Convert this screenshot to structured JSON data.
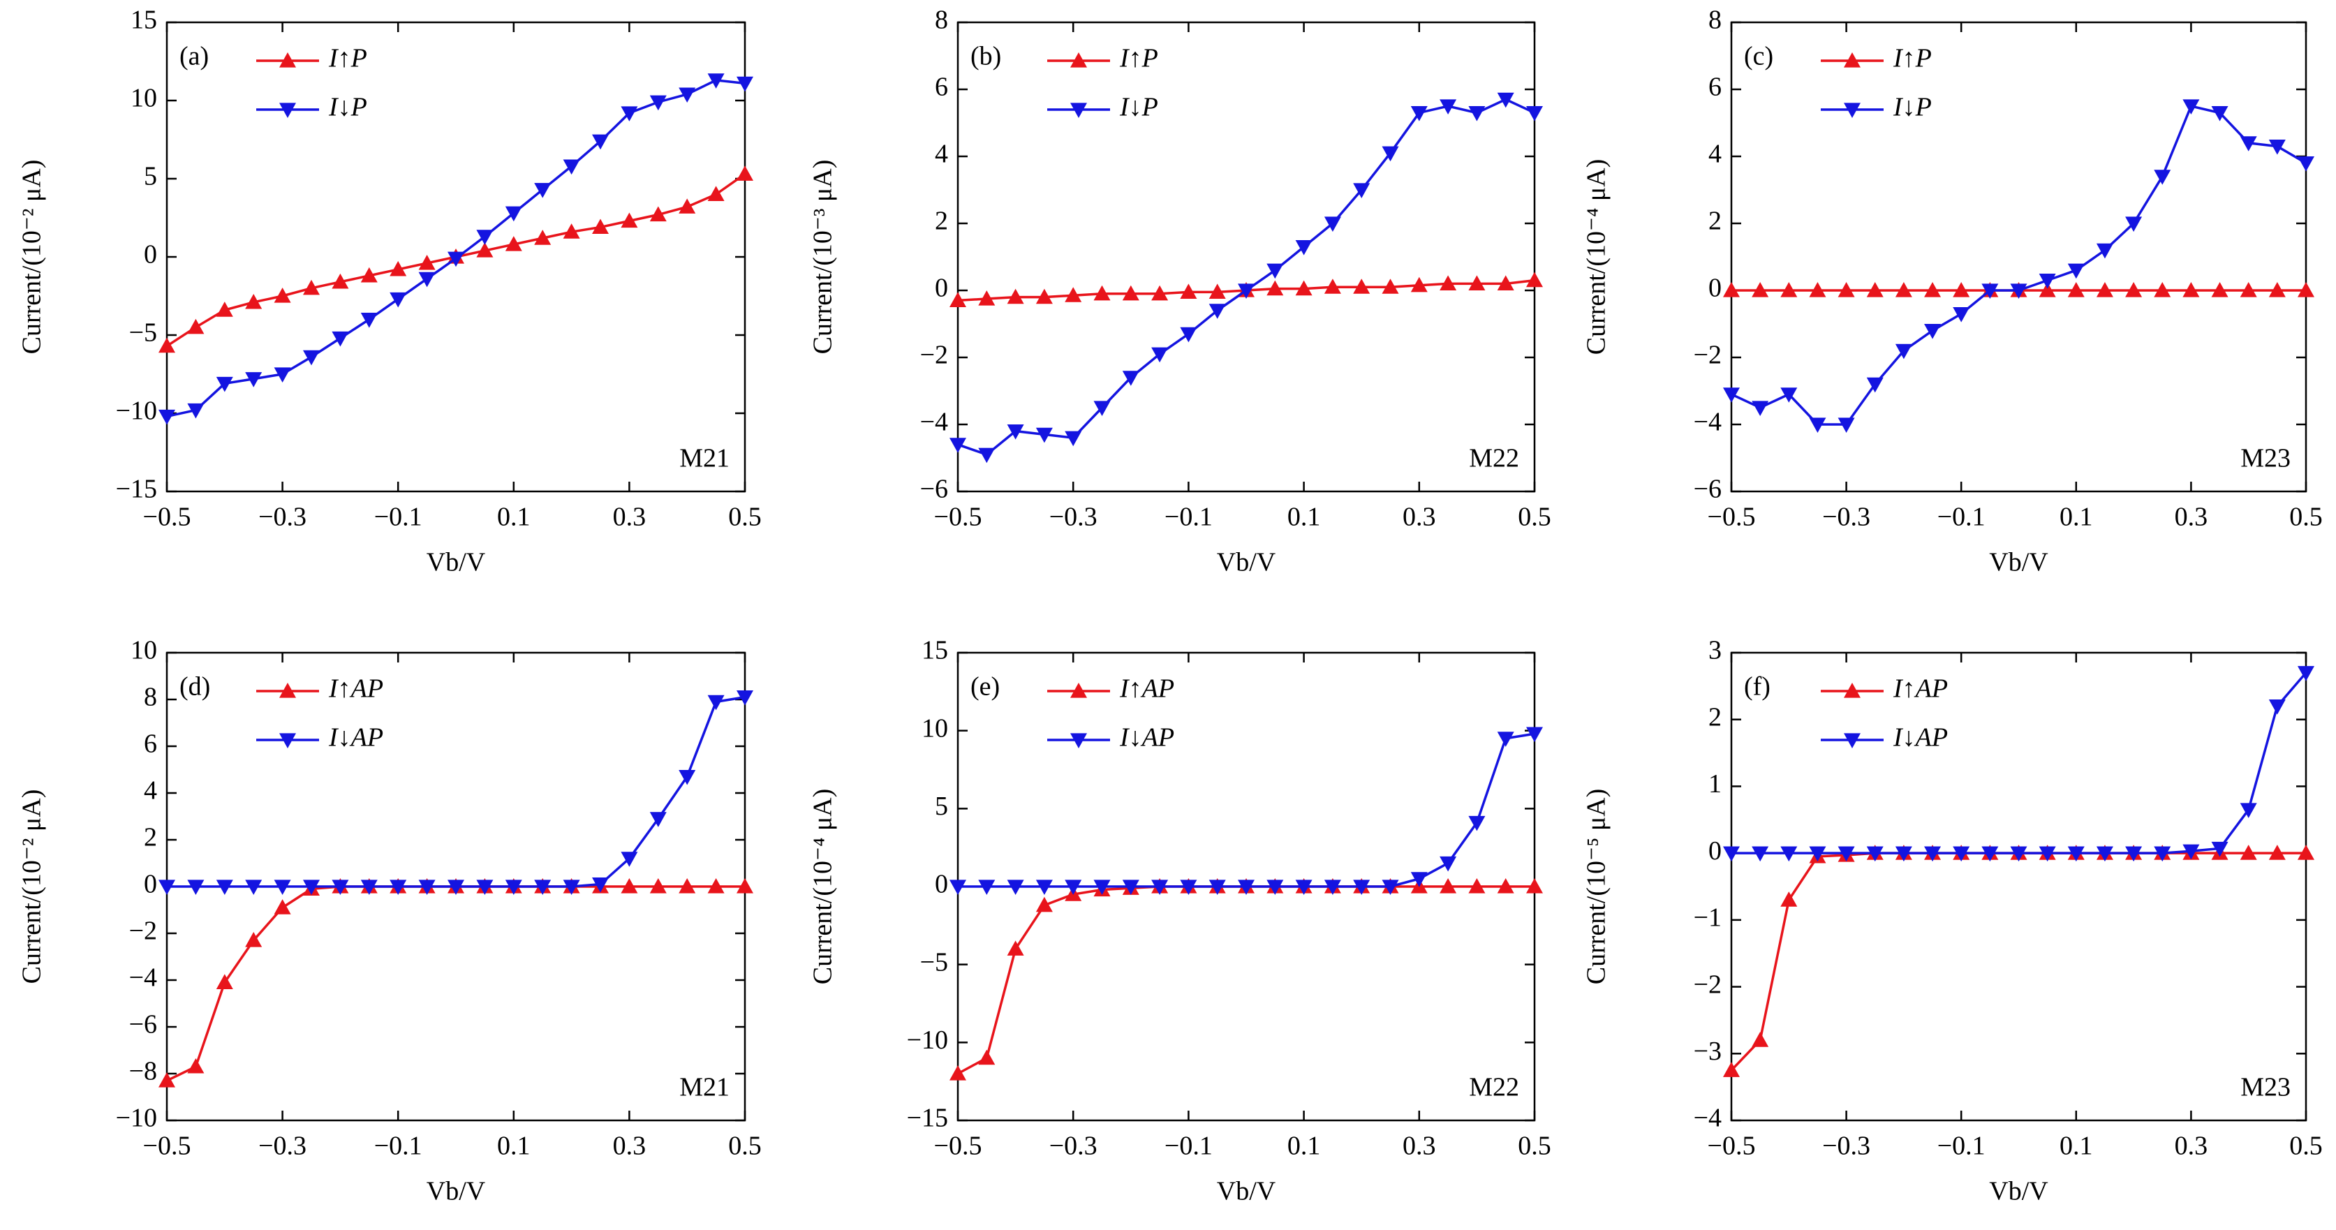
{
  "chart_data": [
    {
      "type": "line",
      "panel": "(a)",
      "annotation": "M21",
      "xlabel": "Vb/V",
      "ylabel": "Current/(10⁻² μA)",
      "x": [
        -0.5,
        -0.45,
        -0.4,
        -0.35,
        -0.3,
        -0.25,
        -0.2,
        -0.15,
        -0.1,
        -0.05,
        0,
        0.05,
        0.1,
        0.15,
        0.2,
        0.25,
        0.3,
        0.35,
        0.4,
        0.45,
        0.5
      ],
      "xlim": [
        -0.5,
        0.5
      ],
      "xticks": [
        {
          "value": -0.5,
          "label": "−0.5"
        },
        {
          "value": -0.3,
          "label": "−0.3"
        },
        {
          "value": -0.1,
          "label": "−0.1"
        },
        0.1,
        0.3,
        0.5
      ],
      "ylim": [
        -15,
        15
      ],
      "yticks": [
        {
          "value": -15,
          "label": "−15"
        },
        {
          "value": -10,
          "label": "−10"
        },
        {
          "value": -5,
          "label": "−5"
        },
        0,
        5,
        10,
        15
      ],
      "series": [
        {
          "name": "I↑P",
          "color": "#e8141b",
          "marker": "triangle-up",
          "values": [
            -5.7,
            -4.5,
            -3.4,
            -2.9,
            -2.5,
            -2.0,
            -1.6,
            -1.2,
            -0.8,
            -0.4,
            0,
            0.4,
            0.8,
            1.2,
            1.6,
            1.9,
            2.3,
            2.7,
            3.2,
            4.0,
            5.3
          ]
        },
        {
          "name": "I↓P",
          "color": "#1414e0",
          "marker": "triangle-down",
          "values": [
            -10.2,
            -9.8,
            -8.1,
            -7.8,
            -7.5,
            -6.4,
            -5.2,
            -4.0,
            -2.7,
            -1.4,
            -0.1,
            1.3,
            2.8,
            4.3,
            5.8,
            7.4,
            9.2,
            9.9,
            10.4,
            11.3,
            11.1
          ]
        }
      ]
    },
    {
      "type": "line",
      "panel": "(b)",
      "annotation": "M22",
      "xlabel": "Vb/V",
      "ylabel": "Current/(10⁻³ μA)",
      "x": [
        -0.5,
        -0.45,
        -0.4,
        -0.35,
        -0.3,
        -0.25,
        -0.2,
        -0.15,
        -0.1,
        -0.05,
        0,
        0.05,
        0.1,
        0.15,
        0.2,
        0.25,
        0.3,
        0.35,
        0.4,
        0.45,
        0.5
      ],
      "xlim": [
        -0.5,
        0.5
      ],
      "xticks": [
        {
          "value": -0.5,
          "label": "−0.5"
        },
        {
          "value": -0.3,
          "label": "−0.3"
        },
        {
          "value": -0.1,
          "label": "−0.1"
        },
        0.1,
        0.3,
        0.5
      ],
      "ylim": [
        -6,
        8
      ],
      "yticks": [
        {
          "value": -6,
          "label": "−6"
        },
        {
          "value": -4,
          "label": "−4"
        },
        {
          "value": -2,
          "label": "−2"
        },
        0,
        2,
        4,
        6,
        8
      ],
      "series": [
        {
          "name": "I↑P",
          "color": "#e8141b",
          "marker": "triangle-up",
          "values": [
            -0.3,
            -0.25,
            -0.2,
            -0.2,
            -0.15,
            -0.1,
            -0.1,
            -0.1,
            -0.05,
            -0.05,
            0,
            0.05,
            0.05,
            0.1,
            0.1,
            0.1,
            0.15,
            0.2,
            0.2,
            0.2,
            0.3
          ]
        },
        {
          "name": "I↓P",
          "color": "#1414e0",
          "marker": "triangle-down",
          "values": [
            -4.6,
            -4.9,
            -4.2,
            -4.3,
            -4.4,
            -3.5,
            -2.6,
            -1.9,
            -1.3,
            -0.6,
            0,
            0.6,
            1.3,
            2.0,
            3.0,
            4.1,
            5.3,
            5.5,
            5.3,
            5.7,
            5.3
          ]
        }
      ]
    },
    {
      "type": "line",
      "panel": "(c)",
      "annotation": "M23",
      "xlabel": "Vb/V",
      "ylabel": "Current/(10⁻⁴ μA)",
      "x": [
        -0.5,
        -0.45,
        -0.4,
        -0.35,
        -0.3,
        -0.25,
        -0.2,
        -0.15,
        -0.1,
        -0.05,
        0,
        0.05,
        0.1,
        0.15,
        0.2,
        0.25,
        0.3,
        0.35,
        0.4,
        0.45,
        0.5
      ],
      "xlim": [
        -0.5,
        0.5
      ],
      "xticks": [
        {
          "value": -0.5,
          "label": "−0.5"
        },
        {
          "value": -0.3,
          "label": "−0.3"
        },
        {
          "value": -0.1,
          "label": "−0.1"
        },
        0.1,
        0.3,
        0.5
      ],
      "ylim": [
        -6,
        8
      ],
      "yticks": [
        {
          "value": -6,
          "label": "−6"
        },
        {
          "value": -4,
          "label": "−4"
        },
        {
          "value": -2,
          "label": "−2"
        },
        0,
        2,
        4,
        6,
        8
      ],
      "series": [
        {
          "name": "I↑P",
          "color": "#e8141b",
          "marker": "triangle-up",
          "values": [
            0,
            0,
            0,
            0,
            0,
            0,
            0,
            0,
            0,
            0,
            0,
            0,
            0,
            0,
            0,
            0,
            0,
            0,
            0,
            0,
            0
          ]
        },
        {
          "name": "I↓P",
          "color": "#1414e0",
          "marker": "triangle-down",
          "values": [
            -3.1,
            -3.5,
            -3.1,
            -4.0,
            -4.0,
            -2.8,
            -1.8,
            -1.2,
            -0.7,
            0,
            0,
            0.3,
            0.6,
            1.2,
            2.0,
            3.4,
            5.5,
            5.3,
            4.4,
            4.3,
            3.8
          ]
        }
      ]
    },
    {
      "type": "line",
      "panel": "(d)",
      "annotation": "M21",
      "xlabel": "Vb/V",
      "ylabel": "Current/(10⁻² μA)",
      "x": [
        -0.5,
        -0.45,
        -0.4,
        -0.35,
        -0.3,
        -0.25,
        -0.2,
        -0.15,
        -0.1,
        -0.05,
        0,
        0.05,
        0.1,
        0.15,
        0.2,
        0.25,
        0.3,
        0.35,
        0.4,
        0.45,
        0.5
      ],
      "xlim": [
        -0.5,
        0.5
      ],
      "xticks": [
        {
          "value": -0.5,
          "label": "−0.5"
        },
        {
          "value": -0.3,
          "label": "−0.3"
        },
        {
          "value": -0.1,
          "label": "−0.1"
        },
        0.1,
        0.3,
        0.5
      ],
      "ylim": [
        -10,
        10
      ],
      "yticks": [
        {
          "value": -10,
          "label": "−10"
        },
        {
          "value": -8,
          "label": "−8"
        },
        {
          "value": -6,
          "label": "−6"
        },
        {
          "value": -4,
          "label": "−4"
        },
        {
          "value": -2,
          "label": "−2"
        },
        0,
        2,
        4,
        6,
        8,
        10
      ],
      "series": [
        {
          "name": "I↑AP",
          "color": "#e8141b",
          "marker": "triangle-up",
          "values": [
            -8.3,
            -7.7,
            -4.1,
            -2.3,
            -0.9,
            -0.1,
            0,
            0,
            0,
            0,
            0,
            0,
            0,
            0,
            0,
            0,
            0,
            0,
            0,
            0,
            0
          ]
        },
        {
          "name": "I↓AP",
          "color": "#1414e0",
          "marker": "triangle-down",
          "values": [
            0,
            0,
            0,
            0,
            0,
            0,
            0,
            0,
            0,
            0,
            0,
            0,
            0,
            0,
            0,
            0.1,
            1.2,
            2.9,
            4.7,
            7.9,
            8.1
          ]
        }
      ]
    },
    {
      "type": "line",
      "panel": "(e)",
      "annotation": "M22",
      "xlabel": "Vb/V",
      "ylabel": "Current/(10⁻⁴ μA)",
      "x": [
        -0.5,
        -0.45,
        -0.4,
        -0.35,
        -0.3,
        -0.25,
        -0.2,
        -0.15,
        -0.1,
        -0.05,
        0,
        0.05,
        0.1,
        0.15,
        0.2,
        0.25,
        0.3,
        0.35,
        0.4,
        0.45,
        0.5
      ],
      "xlim": [
        -0.5,
        0.5
      ],
      "xticks": [
        {
          "value": -0.5,
          "label": "−0.5"
        },
        {
          "value": -0.3,
          "label": "−0.3"
        },
        {
          "value": -0.1,
          "label": "−0.1"
        },
        0.1,
        0.3,
        0.5
      ],
      "ylim": [
        -15,
        15
      ],
      "yticks": [
        {
          "value": -15,
          "label": "−15"
        },
        {
          "value": -10,
          "label": "−10"
        },
        {
          "value": -5,
          "label": "−5"
        },
        0,
        5,
        10,
        15
      ],
      "series": [
        {
          "name": "I↑AP",
          "color": "#e8141b",
          "marker": "triangle-up",
          "values": [
            -12,
            -11,
            -4,
            -1.2,
            -0.5,
            -0.2,
            -0.1,
            0,
            0,
            0,
            0,
            0,
            0,
            0,
            0,
            0,
            0,
            0,
            0,
            0,
            0
          ]
        },
        {
          "name": "I↓AP",
          "color": "#1414e0",
          "marker": "triangle-down",
          "values": [
            0,
            0,
            0,
            0,
            0,
            0,
            0,
            0,
            0,
            0,
            0,
            0,
            0,
            0,
            0,
            0,
            0.5,
            1.5,
            4.1,
            9.5,
            9.8
          ]
        }
      ]
    },
    {
      "type": "line",
      "panel": "(f)",
      "annotation": "M23",
      "xlabel": "Vb/V",
      "ylabel": "Current/(10⁻⁵ μA)",
      "x": [
        -0.5,
        -0.45,
        -0.4,
        -0.35,
        -0.3,
        -0.25,
        -0.2,
        -0.15,
        -0.1,
        -0.05,
        0,
        0.05,
        0.1,
        0.15,
        0.2,
        0.25,
        0.3,
        0.35,
        0.4,
        0.45,
        0.5
      ],
      "xlim": [
        -0.5,
        0.5
      ],
      "xticks": [
        {
          "value": -0.5,
          "label": "−0.5"
        },
        {
          "value": -0.3,
          "label": "−0.3"
        },
        {
          "value": -0.1,
          "label": "−0.1"
        },
        0.1,
        0.3,
        0.5
      ],
      "ylim": [
        -4,
        3
      ],
      "yticks": [
        {
          "value": -4,
          "label": "−4"
        },
        {
          "value": -3,
          "label": "−3"
        },
        {
          "value": -2,
          "label": "−2"
        },
        {
          "value": -1,
          "label": "−1"
        },
        0,
        1,
        2,
        3
      ],
      "series": [
        {
          "name": "I↑AP",
          "color": "#e8141b",
          "marker": "triangle-up",
          "values": [
            -3.25,
            -2.8,
            -0.7,
            -0.05,
            -0.03,
            0,
            0,
            0,
            0,
            0,
            0,
            0,
            0,
            0,
            0,
            0,
            0,
            0,
            0,
            0,
            0
          ]
        },
        {
          "name": "I↓AP",
          "color": "#1414e0",
          "marker": "triangle-down",
          "values": [
            0,
            0,
            0,
            0,
            0,
            0,
            0,
            0,
            0,
            0,
            0,
            0,
            0,
            0,
            0,
            0,
            0.03,
            0.07,
            0.65,
            2.2,
            2.7
          ]
        }
      ]
    }
  ]
}
